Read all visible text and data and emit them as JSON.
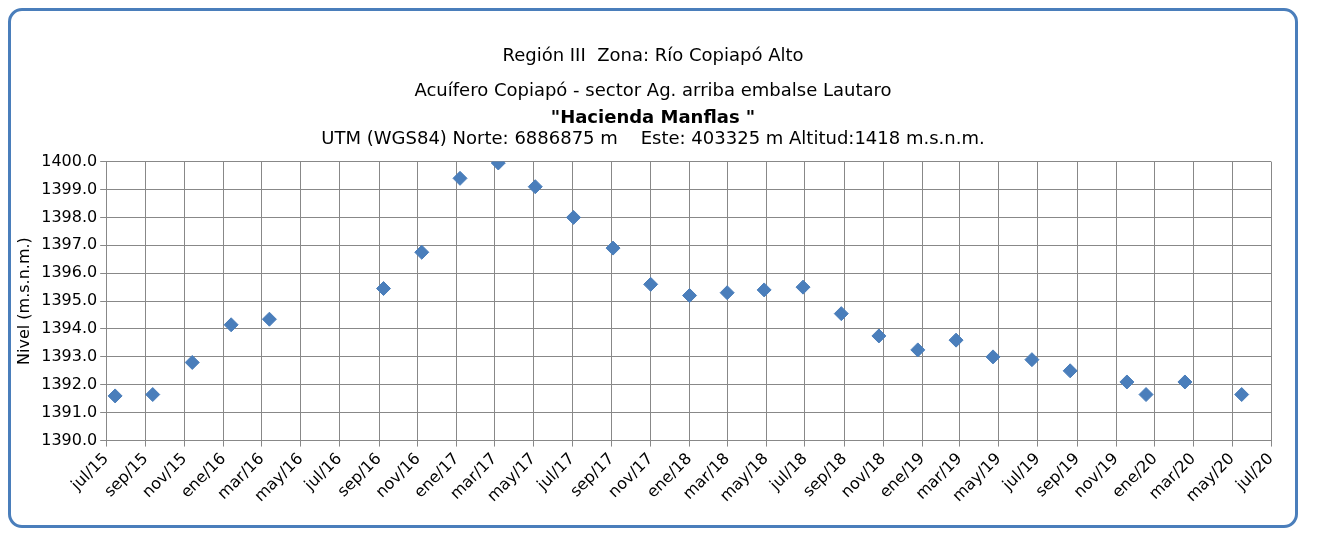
{
  "chart_data": {
    "type": "scatter",
    "title": "Región III  Zona: Río Copiapó Alto\nAcuífero Copiapó - sector Ag. arriba embalse Lautaro",
    "subtitle": "\"Hacienda Manflas \"",
    "annotations": [
      "UTM (WGS84) Norte: 6886875 m    Este: 403325 m Altitud:1418 m.s.n.m."
    ],
    "ylabel": "Nivel (m.s.n.m.)",
    "x": [
      "2015-07-15",
      "2015-09-12",
      "2015-11-13",
      "2016-01-13",
      "2016-03-13",
      "2016-09-08",
      "2016-11-07",
      "2017-01-06",
      "2017-03-07",
      "2017-05-04",
      "2017-07-03",
      "2017-09-03",
      "2017-11-01",
      "2018-01-01",
      "2018-03-01",
      "2018-04-28",
      "2018-06-28",
      "2018-08-27",
      "2018-10-25",
      "2018-12-25",
      "2019-02-23",
      "2019-04-22",
      "2019-06-22",
      "2019-08-21",
      "2019-11-18",
      "2019-12-18",
      "2020-02-17",
      "2020-05-16"
    ],
    "series": [
      {
        "color": "#4a7ebb",
        "values": [
          1391.6,
          1391.65,
          1392.8,
          1394.15,
          1394.35,
          1395.45,
          1396.75,
          1399.4,
          1399.95,
          1399.1,
          1398.0,
          1396.9,
          1395.6,
          1395.2,
          1395.3,
          1395.4,
          1395.5,
          1394.55,
          1393.75,
          1393.25,
          1393.6,
          1393.0,
          1392.9,
          1392.5,
          1392.1,
          1391.65,
          1392.1,
          1391.65
        ]
      }
    ],
    "marker": "diamond",
    "grid": true,
    "legend": false,
    "ylim": [
      1390,
      1400
    ],
    "yticks": [
      {
        "value": 1390,
        "label": "1390.0"
      },
      {
        "value": 1391,
        "label": "1391.0"
      },
      {
        "value": 1392,
        "label": "1392.0"
      },
      {
        "value": 1393,
        "label": "1393.0"
      },
      {
        "value": 1394,
        "label": "1394.0"
      },
      {
        "value": 1395,
        "label": "1395.0"
      },
      {
        "value": 1396,
        "label": "1396.0"
      },
      {
        "value": 1397,
        "label": "1397.0"
      },
      {
        "value": 1398,
        "label": "1398.0"
      },
      {
        "value": 1399,
        "label": "1399.0"
      },
      {
        "value": 1400,
        "label": "1400.0"
      }
    ],
    "xlim": [
      "2015-07-01",
      "2020-07-01"
    ],
    "xticks": [
      {
        "value": "2015-07-01",
        "label": "jul/15"
      },
      {
        "value": "2015-09-01",
        "label": "sep/15"
      },
      {
        "value": "2015-11-01",
        "label": "nov/15"
      },
      {
        "value": "2016-01-01",
        "label": "ene/16"
      },
      {
        "value": "2016-03-01",
        "label": "mar/16"
      },
      {
        "value": "2016-05-01",
        "label": "may/16"
      },
      {
        "value": "2016-07-01",
        "label": "jul/16"
      },
      {
        "value": "2016-09-01",
        "label": "sep/16"
      },
      {
        "value": "2016-11-01",
        "label": "nov/16"
      },
      {
        "value": "2017-01-01",
        "label": "ene/17"
      },
      {
        "value": "2017-03-01",
        "label": "mar/17"
      },
      {
        "value": "2017-05-01",
        "label": "may/17"
      },
      {
        "value": "2017-07-01",
        "label": "jul/17"
      },
      {
        "value": "2017-09-01",
        "label": "sep/17"
      },
      {
        "value": "2017-11-01",
        "label": "nov/17"
      },
      {
        "value": "2018-01-01",
        "label": "ene/18"
      },
      {
        "value": "2018-03-01",
        "label": "mar/18"
      },
      {
        "value": "2018-05-01",
        "label": "may/18"
      },
      {
        "value": "2018-07-01",
        "label": "jul/18"
      },
      {
        "value": "2018-09-01",
        "label": "sep/18"
      },
      {
        "value": "2018-11-01",
        "label": "nov/18"
      },
      {
        "value": "2019-01-01",
        "label": "ene/19"
      },
      {
        "value": "2019-03-01",
        "label": "mar/19"
      },
      {
        "value": "2019-05-01",
        "label": "may/19"
      },
      {
        "value": "2019-07-01",
        "label": "jul/19"
      },
      {
        "value": "2019-09-01",
        "label": "sep/19"
      },
      {
        "value": "2019-11-01",
        "label": "nov/19"
      },
      {
        "value": "2020-01-01",
        "label": "ene/20"
      },
      {
        "value": "2020-03-01",
        "label": "mar/20"
      },
      {
        "value": "2020-05-01",
        "label": "may/20"
      },
      {
        "value": "2020-07-01",
        "label": "jul/20"
      }
    ]
  }
}
